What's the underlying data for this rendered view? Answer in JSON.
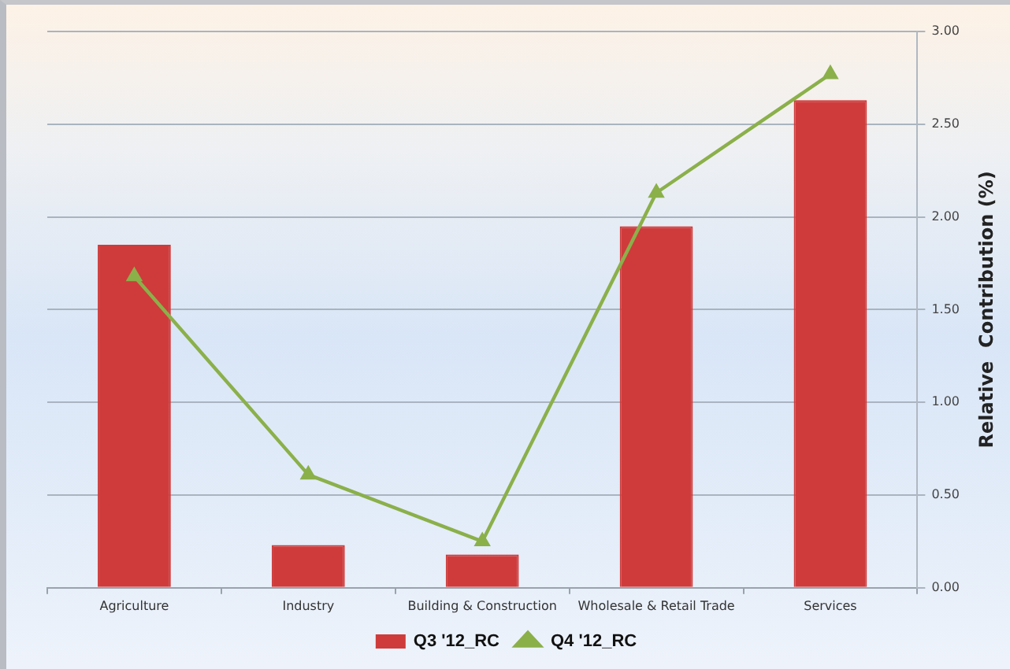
{
  "chart_data": {
    "type": "bar",
    "categories": [
      "Agriculture",
      "Industry",
      "Building & Construction",
      "Wholesale & Retail Trade",
      "Services"
    ],
    "series": [
      {
        "name": "Q3 '12_RC",
        "color": "#cf3b3b",
        "values": [
          1.85,
          0.23,
          0.18,
          1.95,
          2.63
        ]
      },
      {
        "name": "Q4 '12_RC",
        "type": "line",
        "color": "#8bb04a",
        "values": [
          1.68,
          0.61,
          0.25,
          2.13,
          2.77
        ]
      }
    ],
    "ylabel": "Relative  Contribution (%)",
    "ylim": [
      0,
      3
    ],
    "yticks": [
      {
        "value": 0,
        "label": "0.00"
      },
      {
        "value": 0.5,
        "label": "0.50"
      },
      {
        "value": 1,
        "label": "1.00"
      },
      {
        "value": 1.5,
        "label": "1.50"
      },
      {
        "value": 2,
        "label": "2.00"
      },
      {
        "value": 2.5,
        "label": "2.50"
      },
      {
        "value": 3,
        "label": "3.00"
      }
    ],
    "grid": "y",
    "legend": "bottom",
    "marker": "triangle",
    "line_style": "solid"
  }
}
